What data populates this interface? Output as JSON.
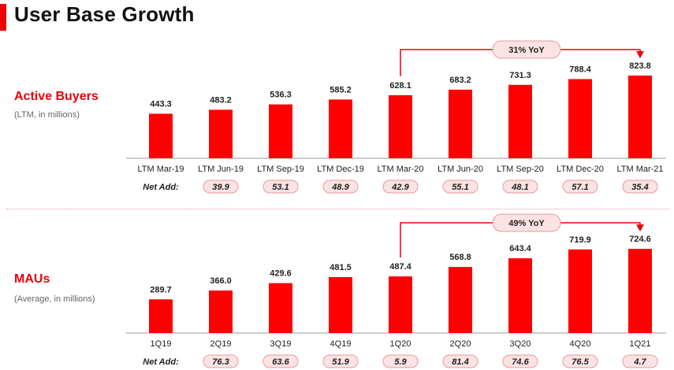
{
  "page_title": "User Base Growth",
  "colors": {
    "bar": "#ff0000",
    "accent": "#e8000b",
    "pill_fill": "#fbe3e3",
    "pill_stroke": "#ea9a9a"
  },
  "chart_data": [
    {
      "type": "bar",
      "title": "Active Buyers",
      "subtitle": "(LTM, in millions)",
      "categories": [
        "LTM Mar-19",
        "LTM Jun-19",
        "LTM Sep-19",
        "LTM Dec-19",
        "LTM Mar-20",
        "LTM Jun-20",
        "LTM Sep-20",
        "LTM Dec-20",
        "LTM Mar-21"
      ],
      "values": [
        443.3,
        483.2,
        536.3,
        585.2,
        628.1,
        683.2,
        731.3,
        788.4,
        823.8
      ],
      "value_labels": [
        "443.3",
        "483.2",
        "536.3",
        "585.2",
        "628.1",
        "683.2",
        "731.3",
        "788.4",
        "823.8"
      ],
      "net_add_label": "Net Add:",
      "net_add": [
        "39.9",
        "53.1",
        "48.9",
        "42.9",
        "55.1",
        "48.1",
        "57.1",
        "35.4"
      ],
      "yoy_label": "31% YoY",
      "yoy_from_index": 4,
      "yoy_to_index": 8
    },
    {
      "type": "bar",
      "title": "MAUs",
      "subtitle": "(Average, in millions)",
      "categories": [
        "1Q19",
        "2Q19",
        "3Q19",
        "4Q19",
        "1Q20",
        "2Q20",
        "3Q20",
        "4Q20",
        "1Q21"
      ],
      "values": [
        289.7,
        366.0,
        429.6,
        481.5,
        487.4,
        568.8,
        643.4,
        719.9,
        724.6
      ],
      "value_labels": [
        "289.7",
        "366.0",
        "429.6",
        "481.5",
        "487.4",
        "568.8",
        "643.4",
        "719.9",
        "724.6"
      ],
      "net_add_label": "Net Add:",
      "net_add": [
        "76.3",
        "63.6",
        "51.9",
        "5.9",
        "81.4",
        "74.6",
        "76.5",
        "4.7"
      ],
      "yoy_label": "49% YoY",
      "yoy_from_index": 4,
      "yoy_to_index": 8
    }
  ]
}
